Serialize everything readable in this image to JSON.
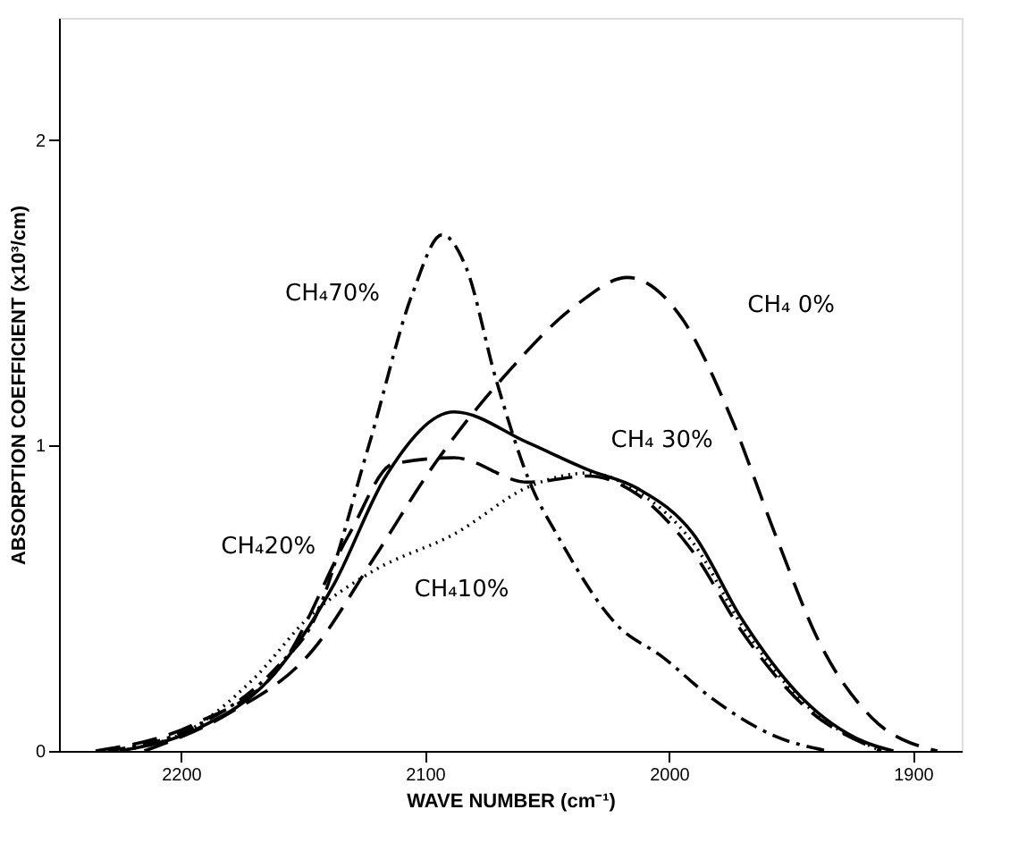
{
  "chart_data": {
    "type": "line",
    "xlabel": "WAVE  NUMBER (cm⁻¹)",
    "ylabel": "ABSORPTION COEFFICIENT  (x10³/cm)",
    "xlim": [
      2250,
      1880
    ],
    "xticks": [
      2200,
      2100,
      2000,
      1900
    ],
    "ylim": [
      0,
      2.4
    ],
    "yticks": [
      0,
      1,
      2
    ],
    "grid": false,
    "legend": false,
    "series": [
      {
        "name": "CH₄70%",
        "color": "#000000",
        "line_style": "dashdot",
        "x": [
          2230,
          2194,
          2160,
          2146,
          2123,
          2105,
          2093,
          2083,
          2071,
          2056,
          2046,
          2021,
          2003,
          1982,
          1957,
          1935
        ],
        "values": [
          0,
          0.08,
          0.28,
          0.42,
          1.0,
          1.5,
          1.69,
          1.58,
          1.22,
          0.86,
          0.71,
          0.41,
          0.31,
          0.17,
          0.05,
          0
        ]
      },
      {
        "name": "CH₄ 0%",
        "color": "#000000",
        "line_style": "dashed",
        "x": [
          2215,
          2181,
          2146,
          2121,
          2096,
          2066,
          2038,
          2017,
          1995,
          1975,
          1956,
          1938,
          1917,
          1890
        ],
        "values": [
          0,
          0.12,
          0.33,
          0.63,
          0.94,
          1.24,
          1.46,
          1.55,
          1.42,
          1.1,
          0.7,
          0.35,
          0.11,
          0
        ]
      },
      {
        "name": "CH₄ 30%",
        "color": "#000000",
        "line_style": "solid",
        "x": [
          2225,
          2194,
          2162,
          2137,
          2116,
          2088,
          2058,
          2033,
          2013,
          1990,
          1970,
          1945,
          1920,
          1908
        ],
        "values": [
          0,
          0.07,
          0.25,
          0.55,
          0.9,
          1.11,
          1.01,
          0.92,
          0.86,
          0.71,
          0.43,
          0.17,
          0.03,
          0
        ]
      },
      {
        "name": "CH₄20%",
        "color": "#000000",
        "line_style": "dashed",
        "x": [
          2235,
          2194,
          2158,
          2131,
          2113,
          2088,
          2058,
          2033,
          2013,
          1990,
          1970,
          1945,
          1913
        ],
        "values": [
          0,
          0.09,
          0.29,
          0.71,
          0.94,
          0.96,
          0.88,
          0.9,
          0.84,
          0.65,
          0.39,
          0.15,
          0
        ]
      },
      {
        "name": "CH₄10%",
        "color": "#000000",
        "line_style": "dotted",
        "x": [
          2225,
          2194,
          2171,
          2146,
          2121,
          2088,
          2056,
          2033,
          2013,
          1990,
          1970,
          1945,
          1913
        ],
        "values": [
          0,
          0.08,
          0.23,
          0.45,
          0.59,
          0.71,
          0.87,
          0.91,
          0.85,
          0.68,
          0.41,
          0.16,
          0
        ]
      }
    ]
  }
}
